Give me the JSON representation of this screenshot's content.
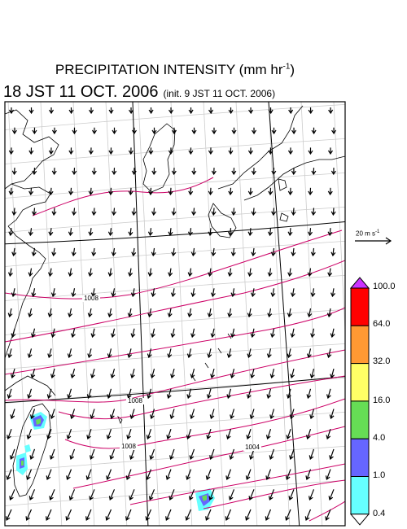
{
  "title": {
    "main": "PRECIPITATION INTENSITY (mm hr",
    "exponent": "-1",
    "close": ")"
  },
  "subtitle": {
    "valid_time": "18 JST 11 OCT. 2006",
    "init_time": "(init. 9 JST 11 OCT. 2006)"
  },
  "wind_scale": {
    "label": "20 m s",
    "exponent": "-1"
  },
  "isobars": {
    "labels": [
      "1008",
      "1008",
      "1008",
      "1004"
    ]
  },
  "colorbar": {
    "levels": [
      "100.0",
      "64.0",
      "32.0",
      "16.0",
      "4.0",
      "1.0",
      "0.4"
    ],
    "colors": [
      "#ff0000",
      "#ff9933",
      "#ffff66",
      "#66dd55",
      "#6666ff",
      "#66ffff"
    ],
    "over_color": "#cc33ff",
    "under_color": "#ffffff"
  },
  "colors": {
    "isobar": "#cc0066",
    "coast": "#000000",
    "grid": "#cccccc",
    "arrow": "#000000"
  }
}
